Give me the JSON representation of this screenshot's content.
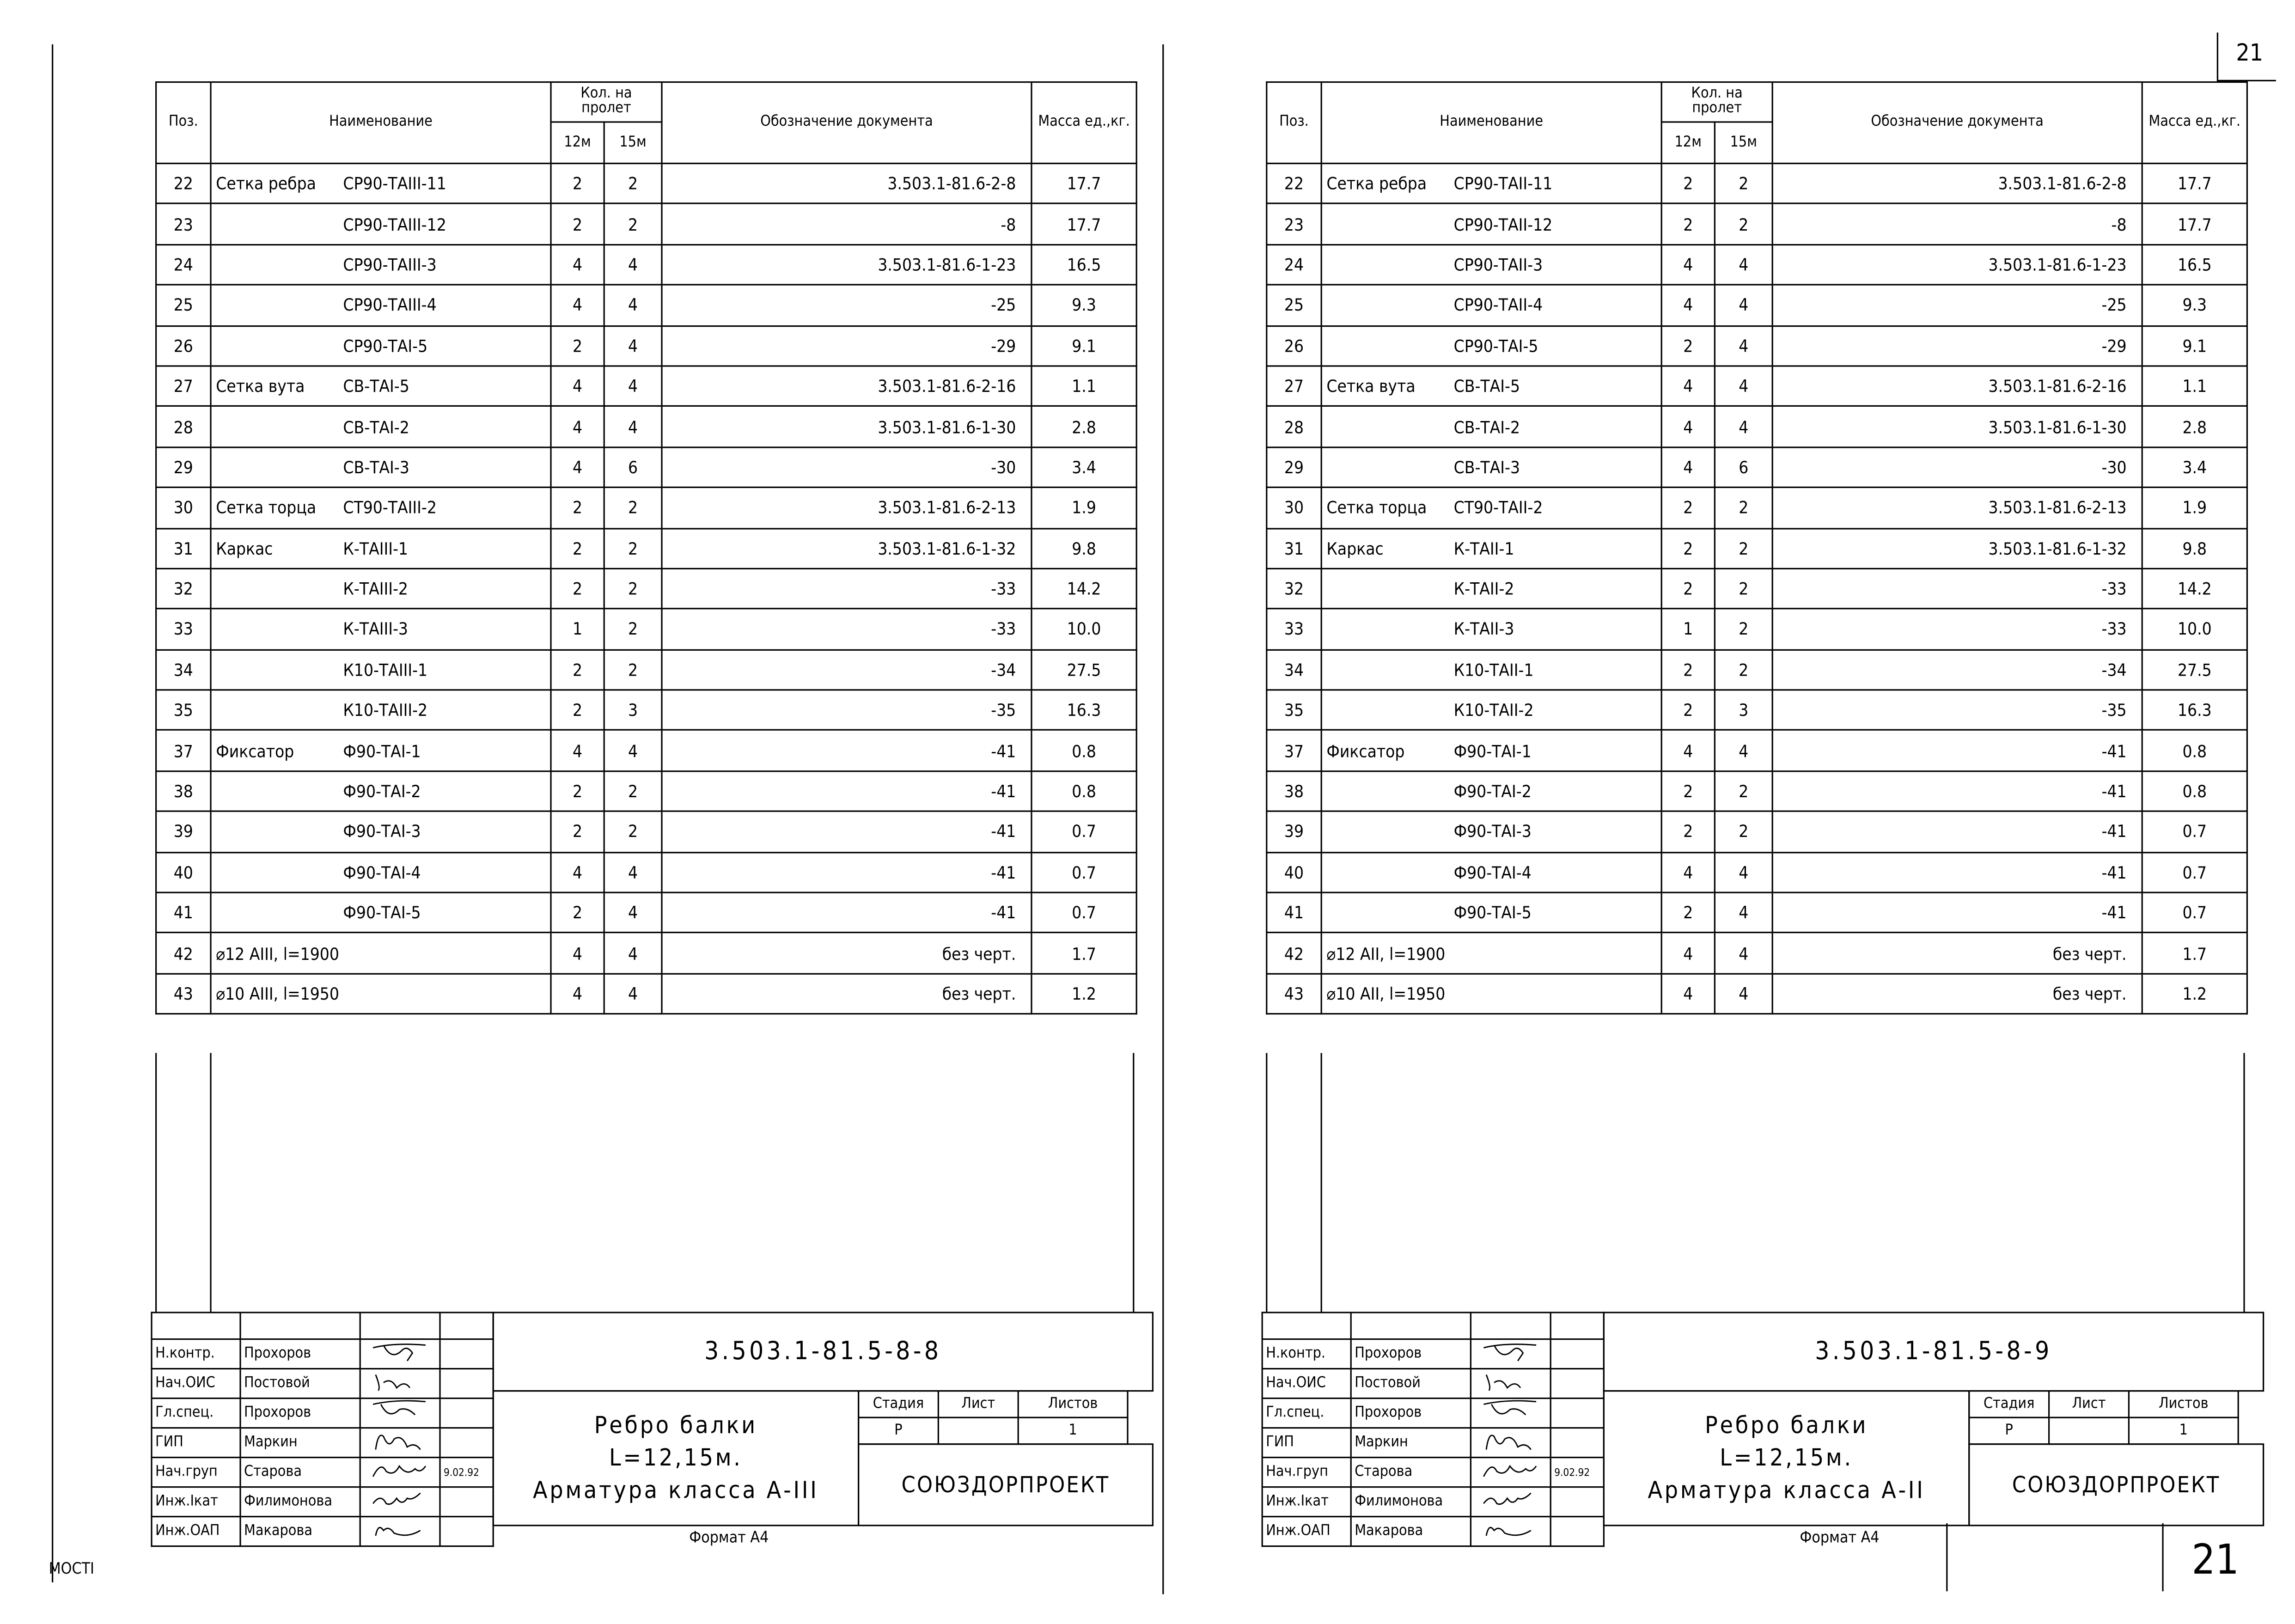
{
  "header": {
    "pos": "Поз.",
    "name": "Наименование",
    "qty": "Кол. на пролет",
    "q12": "12м",
    "q15": "15м",
    "doc": "Обозначение документа",
    "mass": "Масса ед.,кг."
  },
  "sheets": [
    {
      "code": "3.503.1-81.5-8-8",
      "title": [
        "Ребро балки",
        "L=12,15м.",
        "Арматура класса А-III"
      ],
      "stage_label": "Стадия",
      "sheet_label": "Лист",
      "sheets_label": "Листов",
      "stage": "Р",
      "sheets": "1",
      "org": "СОЮЗДОРПРОЕКТ",
      "format": "Формат А4",
      "date": "9.02.92",
      "rows": [
        [
          "22",
          "Сетка ребра",
          "СР90-ТАIII-11",
          "2",
          "2",
          "3.503.1-81.6-2-8",
          "17.7"
        ],
        [
          "23",
          "",
          "СР90-ТАIII-12",
          "2",
          "2",
          "-8",
          "17.7"
        ],
        [
          "24",
          "",
          "СР90-ТАIII-3",
          "4",
          "4",
          "3.503.1-81.6-1-23",
          "16.5"
        ],
        [
          "25",
          "",
          "СР90-ТАIII-4",
          "4",
          "4",
          "-25",
          "9.3"
        ],
        [
          "26",
          "",
          "СР90-ТАI-5",
          "2",
          "4",
          "-29",
          "9.1"
        ],
        [
          "27",
          "Сетка вута",
          "СВ-ТАI-5",
          "4",
          "4",
          "3.503.1-81.6-2-16",
          "1.1"
        ],
        [
          "28",
          "",
          "СВ-ТАI-2",
          "4",
          "4",
          "3.503.1-81.6-1-30",
          "2.8"
        ],
        [
          "29",
          "",
          "СВ-ТАI-3",
          "4",
          "6",
          "-30",
          "3.4"
        ],
        [
          "30",
          "Сетка торца",
          "СТ90-ТАIII-2",
          "2",
          "2",
          "3.503.1-81.6-2-13",
          "1.9"
        ],
        [
          "31",
          "Каркас",
          "К-ТАIII-1",
          "2",
          "2",
          "3.503.1-81.6-1-32",
          "9.8"
        ],
        [
          "32",
          "",
          "К-ТАIII-2",
          "2",
          "2",
          "-33",
          "14.2"
        ],
        [
          "33",
          "",
          "К-ТАIII-3",
          "1",
          "2",
          "-33",
          "10.0"
        ],
        [
          "34",
          "",
          "К10-ТАIII-1",
          "2",
          "2",
          "-34",
          "27.5"
        ],
        [
          "35",
          "",
          "К10-ТАIII-2",
          "2",
          "3",
          "-35",
          "16.3"
        ],
        [
          "37",
          "Фиксатор",
          "Ф90-ТАI-1",
          "4",
          "4",
          "-41",
          "0.8"
        ],
        [
          "38",
          "",
          "Ф90-ТАI-2",
          "2",
          "2",
          "-41",
          "0.8"
        ],
        [
          "39",
          "",
          "Ф90-ТАI-3",
          "2",
          "2",
          "-41",
          "0.7"
        ],
        [
          "40",
          "",
          "Ф90-ТАI-4",
          "4",
          "4",
          "-41",
          "0.7"
        ],
        [
          "41",
          "",
          "Ф90-ТАI-5",
          "2",
          "4",
          "-41",
          "0.7"
        ],
        [
          "42",
          "⌀12 АIII, l=1900",
          "",
          "4",
          "4",
          "без черт.",
          "1.7"
        ],
        [
          "43",
          "⌀10 АIII, l=1950",
          "",
          "4",
          "4",
          "без черт.",
          "1.2"
        ]
      ]
    },
    {
      "code": "3.503.1-81.5-8-9",
      "title": [
        "Ребро балки",
        "L=12,15м.",
        "Арматура класса А-II"
      ],
      "stage_label": "Стадия",
      "sheet_label": "Лист",
      "sheets_label": "Листов",
      "stage": "Р",
      "sheets": "1",
      "org": "СОЮЗДОРПРОЕКТ",
      "format": "Формат А4",
      "date": "9.02.92",
      "rows": [
        [
          "22",
          "Сетка ребра",
          "СР90-ТАII-11",
          "2",
          "2",
          "3.503.1-81.6-2-8",
          "17.7"
        ],
        [
          "23",
          "",
          "СР90-ТАII-12",
          "2",
          "2",
          "-8",
          "17.7"
        ],
        [
          "24",
          "",
          "СР90-ТАII-3",
          "4",
          "4",
          "3.503.1-81.6-1-23",
          "16.5"
        ],
        [
          "25",
          "",
          "СР90-ТАII-4",
          "4",
          "4",
          "-25",
          "9.3"
        ],
        [
          "26",
          "",
          "СР90-ТАI-5",
          "2",
          "4",
          "-29",
          "9.1"
        ],
        [
          "27",
          "Сетка вута",
          "СВ-ТАI-5",
          "4",
          "4",
          "3.503.1-81.6-2-16",
          "1.1"
        ],
        [
          "28",
          "",
          "СВ-ТАI-2",
          "4",
          "4",
          "3.503.1-81.6-1-30",
          "2.8"
        ],
        [
          "29",
          "",
          "СВ-ТАI-3",
          "4",
          "6",
          "-30",
          "3.4"
        ],
        [
          "30",
          "Сетка торца",
          "СТ90-ТАII-2",
          "2",
          "2",
          "3.503.1-81.6-2-13",
          "1.9"
        ],
        [
          "31",
          "Каркас",
          "К-ТАII-1",
          "2",
          "2",
          "3.503.1-81.6-1-32",
          "9.8"
        ],
        [
          "32",
          "",
          "К-ТАII-2",
          "2",
          "2",
          "-33",
          "14.2"
        ],
        [
          "33",
          "",
          "К-ТАII-3",
          "1",
          "2",
          "-33",
          "10.0"
        ],
        [
          "34",
          "",
          "К10-ТАII-1",
          "2",
          "2",
          "-34",
          "27.5"
        ],
        [
          "35",
          "",
          "К10-ТАII-2",
          "2",
          "3",
          "-35",
          "16.3"
        ],
        [
          "37",
          "Фиксатор",
          "Ф90-ТАI-1",
          "4",
          "4",
          "-41",
          "0.8"
        ],
        [
          "38",
          "",
          "Ф90-ТАI-2",
          "2",
          "2",
          "-41",
          "0.8"
        ],
        [
          "39",
          "",
          "Ф90-ТАI-3",
          "2",
          "2",
          "-41",
          "0.7"
        ],
        [
          "40",
          "",
          "Ф90-ТАI-4",
          "4",
          "4",
          "-41",
          "0.7"
        ],
        [
          "41",
          "",
          "Ф90-ТАI-5",
          "2",
          "4",
          "-41",
          "0.7"
        ],
        [
          "42",
          "⌀12 АII, l=1900",
          "",
          "4",
          "4",
          "без черт.",
          "1.7"
        ],
        [
          "43",
          "⌀10 АII, l=1950",
          "",
          "4",
          "4",
          "без черт.",
          "1.2"
        ]
      ]
    }
  ],
  "signers": [
    [
      "Н.контр.",
      "Прохоров"
    ],
    [
      "Нач.ОИС",
      "Постовой"
    ],
    [
      "Гл.спец.",
      "Прохоров"
    ],
    [
      "ГИП",
      "Маркин"
    ],
    [
      "Нач.груп",
      "Старова"
    ],
    [
      "Инж.Iкат",
      "Филимонова"
    ],
    [
      "Инж.ОАП",
      "Макарова"
    ]
  ],
  "page_number_top": "21",
  "page_number_bottom": "21",
  "margin_stamp": "МОСТI"
}
